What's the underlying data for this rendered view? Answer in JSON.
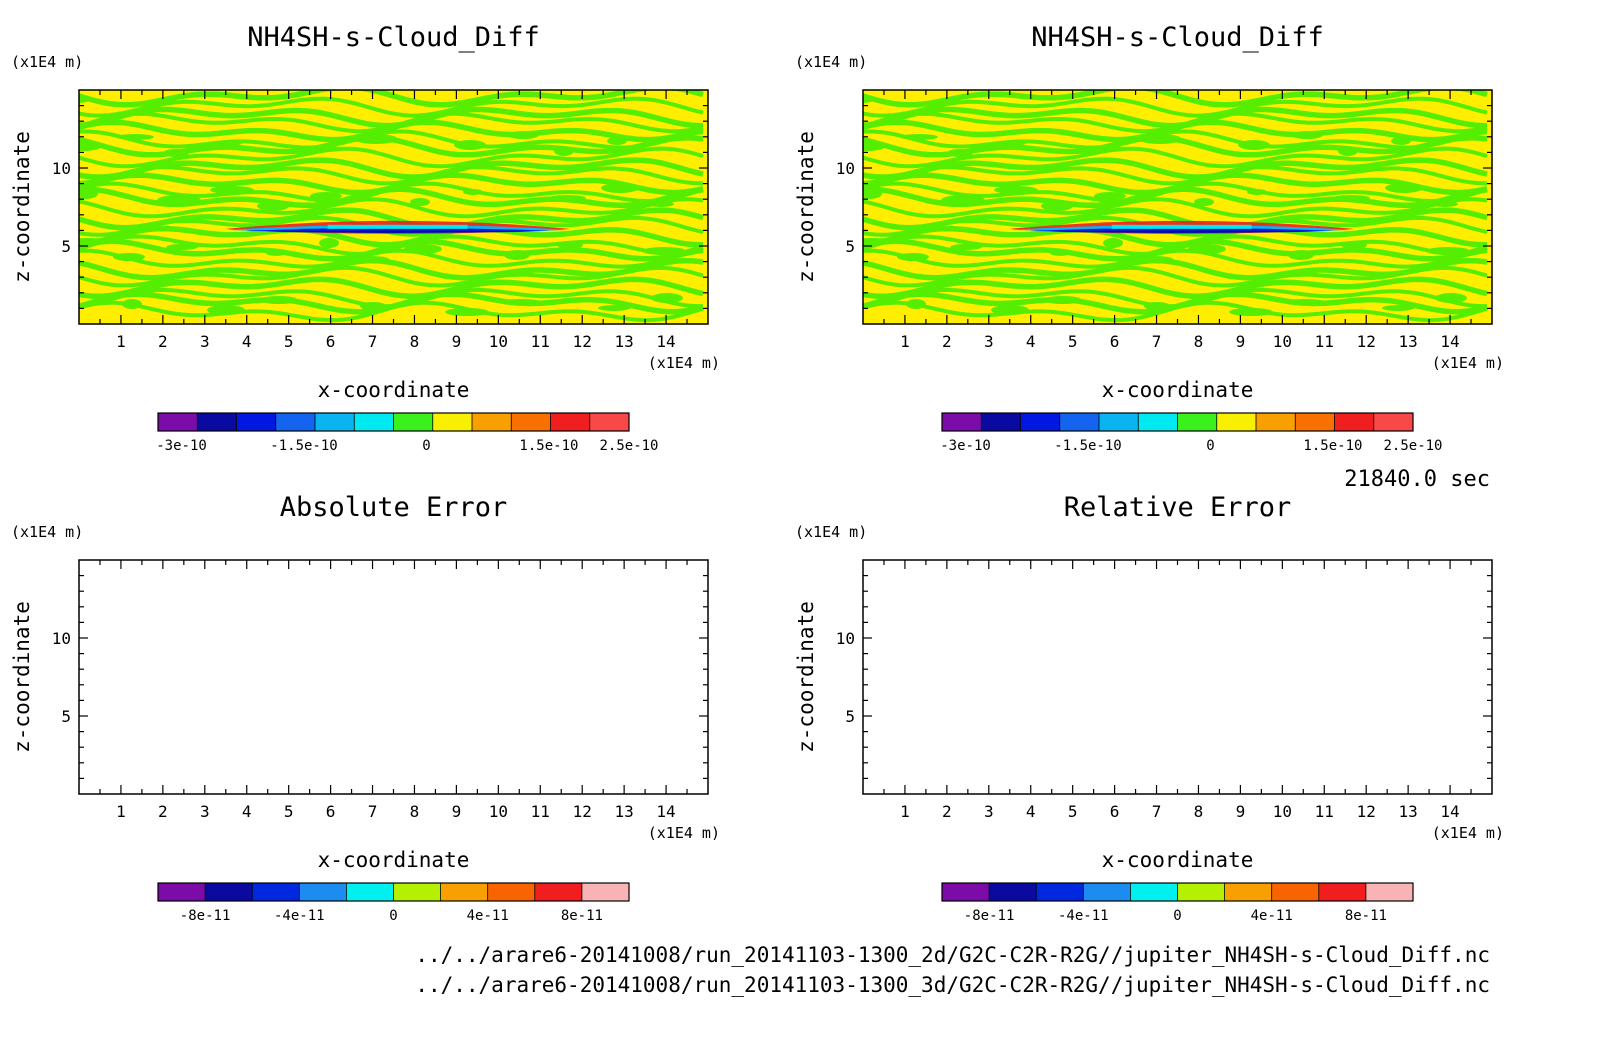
{
  "time_label": "21840.0 sec",
  "files": [
    "../../arare6-20141008/run_20141103-1300_2d/G2C-C2R-R2G//jupiter_NH4SH-s-Cloud_Diff.nc",
    "../../arare6-20141008/run_20141103-1300_3d/G2C-C2R-R2G//jupiter_NH4SH-s-Cloud_Diff.nc"
  ],
  "colors": {
    "diff_levels": [
      "#7b0ca8",
      "#0a0aa0",
      "#0018e0",
      "#1464f0",
      "#0ab4f0",
      "#00e8f0",
      "#3cf01e",
      "#f8f000",
      "#f8a000",
      "#f87000",
      "#f01e1e",
      "#f84848"
    ],
    "err_levels": [
      "#7b0ca8",
      "#0a0aa0",
      "#0028e0",
      "#1c8cf0",
      "#00f0f0",
      "#b4f000",
      "#f8a000",
      "#f86400",
      "#f01e1e",
      "#f8b4b4"
    ],
    "field_main": [
      "#ffee00",
      "#55ee00"
    ]
  },
  "chart_data": [
    {
      "type": "heatmap",
      "title": "NH4SH-s-Cloud_Diff",
      "xlabel": "x-coordinate",
      "ylabel": "z-coordinate",
      "x_unit": "(x1E4 m)",
      "y_unit": "(x1E4 m)",
      "xlim": [
        0,
        15
      ],
      "ylim": [
        0,
        15
      ],
      "x_ticks": [
        "1",
        "2",
        "3",
        "4",
        "5",
        "6",
        "7",
        "8",
        "9",
        "10",
        "11",
        "12",
        "13",
        "14"
      ],
      "y_ticks": [
        "5",
        "10"
      ],
      "colorbar_labels": [
        "-3e-10",
        "-1.5e-10",
        "0",
        "1.5e-10",
        "2.5e-10"
      ],
      "filled": true
    },
    {
      "type": "heatmap",
      "title": "NH4SH-s-Cloud_Diff",
      "xlabel": "x-coordinate",
      "ylabel": "z-coordinate",
      "x_unit": "(x1E4 m)",
      "y_unit": "(x1E4 m)",
      "xlim": [
        0,
        15
      ],
      "ylim": [
        0,
        15
      ],
      "x_ticks": [
        "1",
        "2",
        "3",
        "4",
        "5",
        "6",
        "7",
        "8",
        "9",
        "10",
        "11",
        "12",
        "13",
        "14"
      ],
      "y_ticks": [
        "5",
        "10"
      ],
      "colorbar_labels": [
        "-3e-10",
        "-1.5e-10",
        "0",
        "1.5e-10",
        "2.5e-10"
      ],
      "filled": true
    },
    {
      "type": "heatmap",
      "title": "Absolute Error",
      "xlabel": "x-coordinate",
      "ylabel": "z-coordinate",
      "x_unit": "(x1E4 m)",
      "y_unit": "(x1E4 m)",
      "xlim": [
        0,
        15
      ],
      "ylim": [
        0,
        15
      ],
      "x_ticks": [
        "1",
        "2",
        "3",
        "4",
        "5",
        "6",
        "7",
        "8",
        "9",
        "10",
        "11",
        "12",
        "13",
        "14"
      ],
      "y_ticks": [
        "5",
        "10"
      ],
      "colorbar_labels": [
        "-8e-11",
        "-4e-11",
        "0",
        "4e-11",
        "8e-11"
      ],
      "filled": false
    },
    {
      "type": "heatmap",
      "title": "Relative Error",
      "xlabel": "x-coordinate",
      "ylabel": "z-coordinate",
      "x_unit": "(x1E4 m)",
      "y_unit": "(x1E4 m)",
      "xlim": [
        0,
        15
      ],
      "ylim": [
        0,
        15
      ],
      "x_ticks": [
        "1",
        "2",
        "3",
        "4",
        "5",
        "6",
        "7",
        "8",
        "9",
        "10",
        "11",
        "12",
        "13",
        "14"
      ],
      "y_ticks": [
        "5",
        "10"
      ],
      "colorbar_labels": [
        "-8e-11",
        "-4e-11",
        "0",
        "4e-11",
        "8e-11"
      ],
      "filled": false
    }
  ]
}
